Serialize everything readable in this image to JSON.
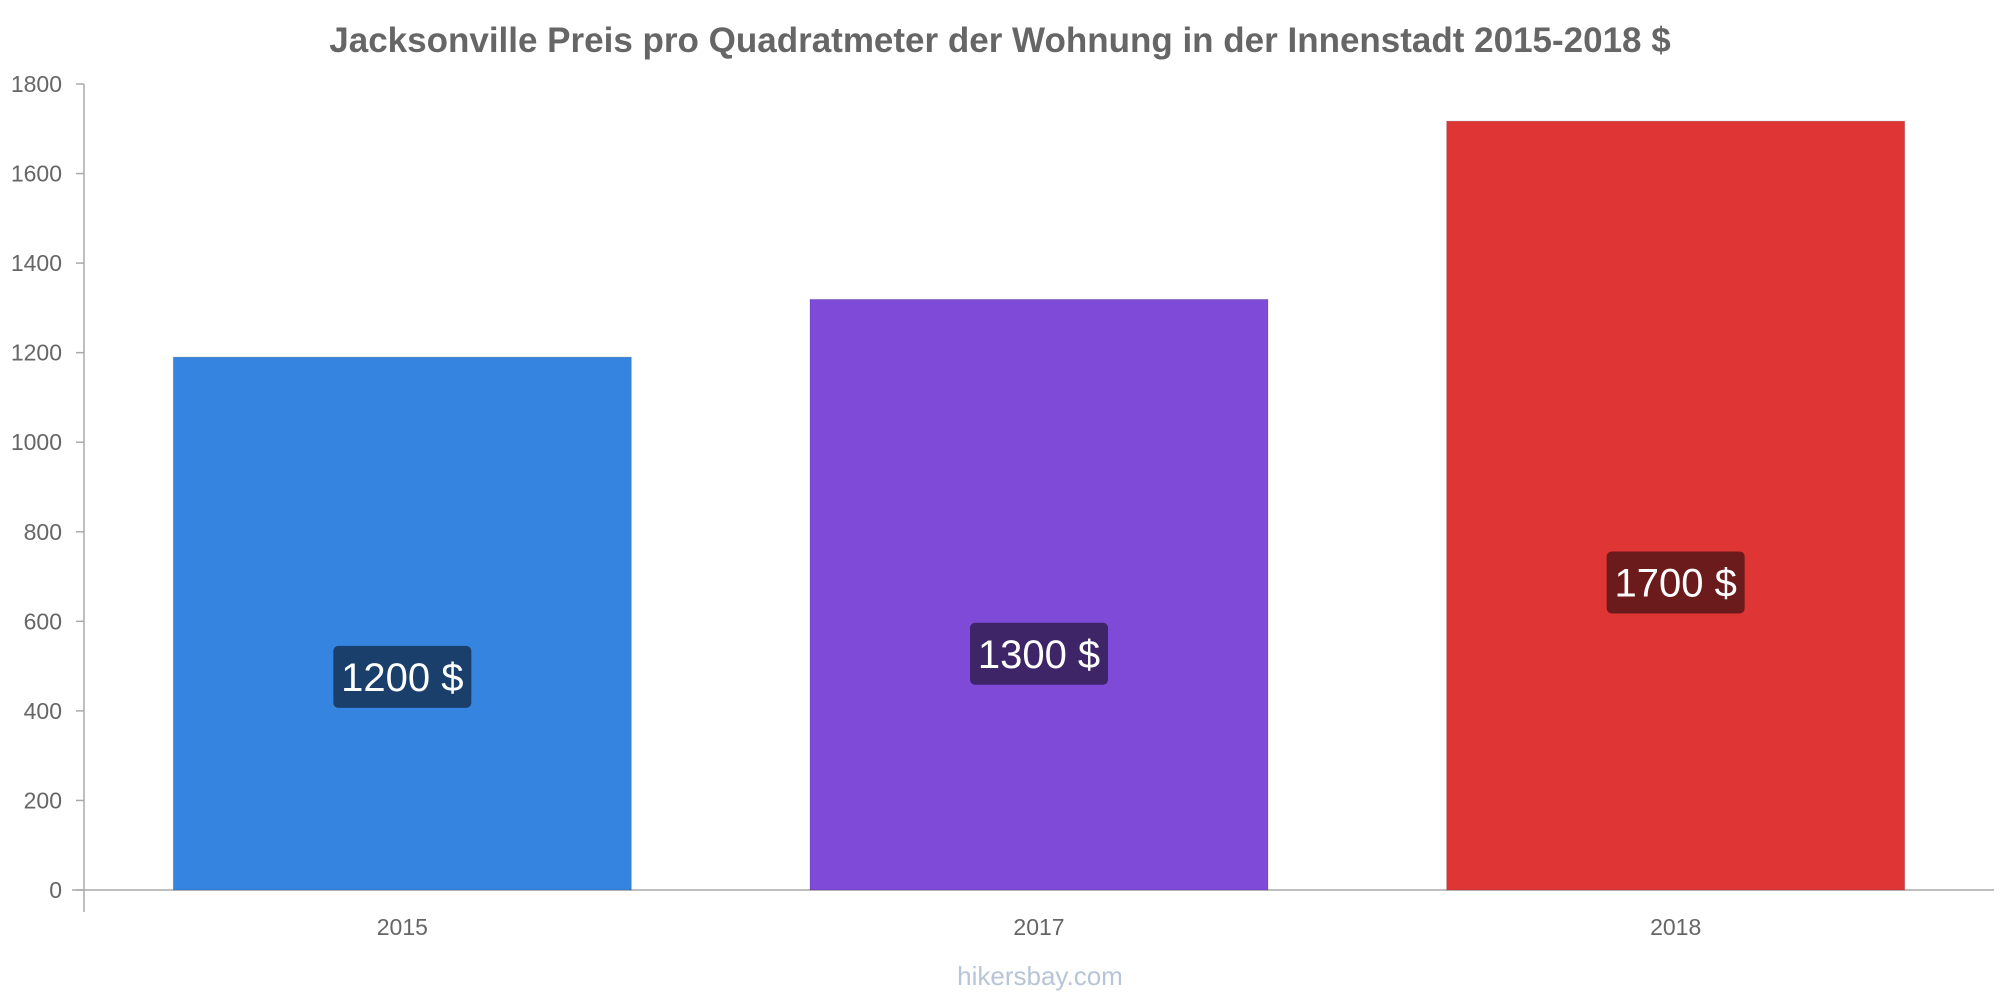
{
  "chart_data": {
    "type": "bar",
    "title": "Jacksonville Preis pro Quadratmeter der Wohnung in der Innenstadt 2015-2018 $",
    "xlabel": "",
    "ylabel": "",
    "categories": [
      "2015",
      "2017",
      "2018"
    ],
    "values": [
      1190,
      1319,
      1717
    ],
    "value_labels": [
      "1200 $",
      "1300 $",
      "1700 $"
    ],
    "bar_colors": [
      "#3584e0",
      "#7f4ad8",
      "#e03535"
    ],
    "label_box_colors": [
      "#1b3f6b",
      "#3e2568",
      "#6b1b1b"
    ],
    "ylim": [
      0,
      1800
    ],
    "yticks": [
      0,
      200,
      400,
      600,
      800,
      1000,
      1200,
      1400,
      1600,
      1800
    ],
    "grid": false,
    "legend": "none"
  },
  "watermark": "hikersbay.com"
}
